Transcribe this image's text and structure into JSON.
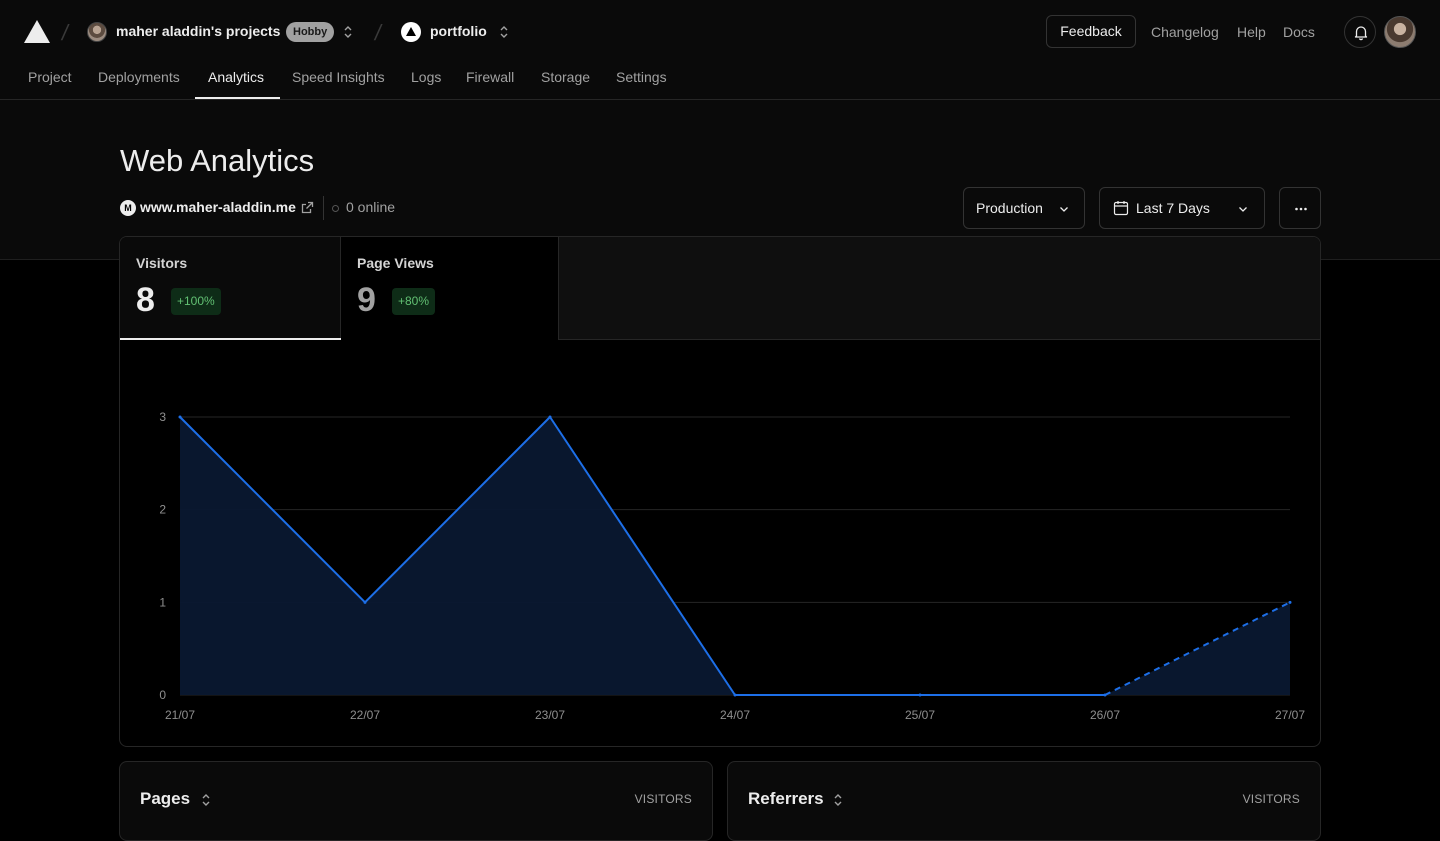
{
  "header": {
    "team_name": "maher aladdin's projects",
    "plan_badge": "Hobby",
    "project_name": "portfolio",
    "feedback_label": "Feedback",
    "links": [
      "Changelog",
      "Help",
      "Docs"
    ]
  },
  "tabs": [
    {
      "label": "Project"
    },
    {
      "label": "Deployments"
    },
    {
      "label": "Analytics",
      "active": true
    },
    {
      "label": "Speed Insights"
    },
    {
      "label": "Logs"
    },
    {
      "label": "Firewall"
    },
    {
      "label": "Storage"
    },
    {
      "label": "Settings"
    }
  ],
  "page": {
    "title": "Web Analytics",
    "site_initial": "M",
    "site_url": "www.maher-aladdin.me",
    "online": "0 online"
  },
  "controls": {
    "environment": "Production",
    "range": "Last 7 Days"
  },
  "metrics": [
    {
      "label": "Visitors",
      "value": "8",
      "change": "+100%",
      "selected": true
    },
    {
      "label": "Page Views",
      "value": "9",
      "change": "+80%",
      "selected": false
    }
  ],
  "chart_data": {
    "type": "area",
    "x": [
      "21/07",
      "22/07",
      "23/07",
      "24/07",
      "25/07",
      "26/07",
      "27/07"
    ],
    "series": [
      {
        "values": [
          3,
          1,
          3,
          0,
          0,
          0,
          1
        ],
        "dashed_from_index": 5
      }
    ],
    "ylim": [
      0,
      3
    ],
    "yticks": [
      0,
      1,
      2,
      3
    ],
    "grid": true,
    "colors": {
      "line": "#1d6fe8",
      "fill": "#0a1830",
      "grid": "#262626"
    }
  },
  "panels": [
    {
      "title": "Pages",
      "column": "VISITORS"
    },
    {
      "title": "Referrers",
      "column": "VISITORS"
    }
  ]
}
